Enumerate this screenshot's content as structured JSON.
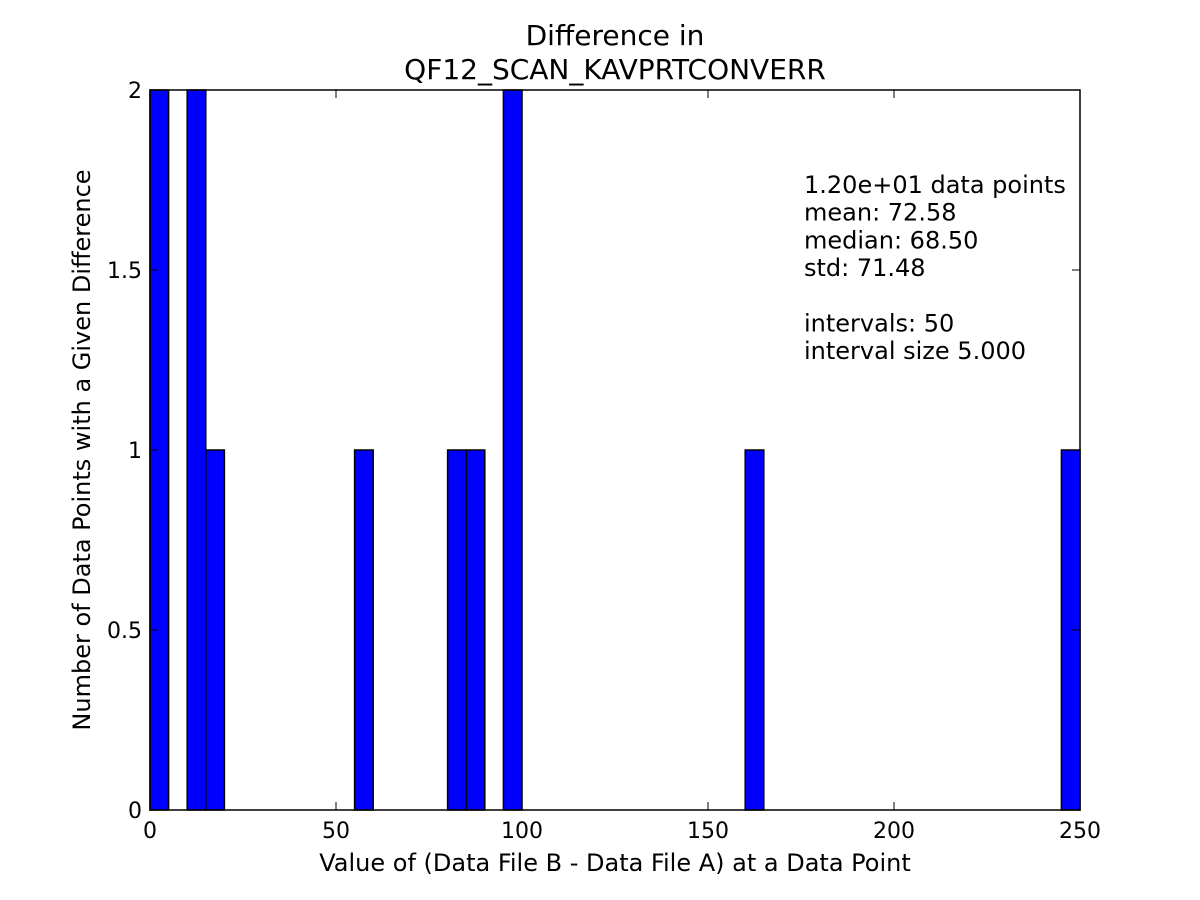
{
  "chart_data": {
    "type": "bar",
    "title_lines": [
      "Difference in",
      "QF12_SCAN_KAVPRTCONVERR"
    ],
    "xlabel": "Value of (Data File B - Data File A) at a Data Point",
    "ylabel": "Number of Data Points with a Given Difference",
    "xlim": [
      0,
      250
    ],
    "ylim": [
      0,
      2
    ],
    "xticks": [
      0,
      50,
      100,
      150,
      200,
      250
    ],
    "xtick_labels": [
      "0",
      "50",
      "100",
      "150",
      "200",
      "250"
    ],
    "yticks": [
      0,
      0.5,
      1,
      1.5,
      2
    ],
    "ytick_labels": [
      "0",
      "0.5",
      "1",
      "1.5",
      "2"
    ],
    "bin_width": 5,
    "bar_color": "#0000ff",
    "bars": [
      {
        "x0": 0,
        "x1": 5,
        "count": 2
      },
      {
        "x0": 10,
        "x1": 15,
        "count": 2
      },
      {
        "x0": 15,
        "x1": 20,
        "count": 1
      },
      {
        "x0": 55,
        "x1": 60,
        "count": 1
      },
      {
        "x0": 80,
        "x1": 85,
        "count": 1
      },
      {
        "x0": 85,
        "x1": 90,
        "count": 1
      },
      {
        "x0": 95,
        "x1": 100,
        "count": 2
      },
      {
        "x0": 160,
        "x1": 165,
        "count": 1
      },
      {
        "x0": 245,
        "x1": 250,
        "count": 1
      }
    ],
    "annotations": [
      "1.20e+01 data points",
      "mean: 72.58",
      "median: 68.50",
      "std: 71.48",
      "",
      "intervals: 50",
      "interval size 5.000"
    ],
    "grid": false
  }
}
